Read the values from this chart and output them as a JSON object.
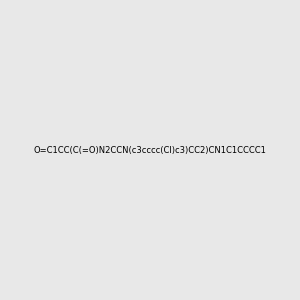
{
  "smiles": "O=C1CC(C(=O)N2CCN(c3cccc(Cl)c3)CC2)CN1C1CCCC1",
  "image_size": 300,
  "background_color": "#e8e8e8",
  "bond_color": "#1a1a1a",
  "atom_colors": {
    "N": "#0000ff",
    "O": "#ff0000",
    "Cl": "#00cc00"
  },
  "title": ""
}
